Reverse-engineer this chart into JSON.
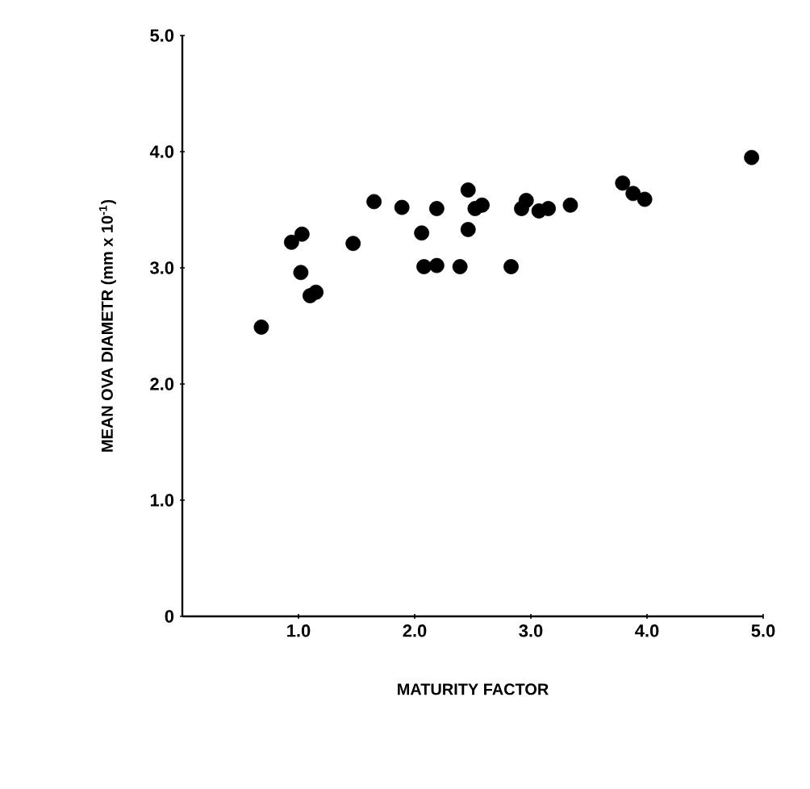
{
  "chart_data": {
    "type": "scatter",
    "xlabel": "MATURITY FACTOR",
    "ylabel": "MEAN OVA DIAMETR  (mm x 10$^{-1}$)",
    "x": [
      0.68,
      0.94,
      1.03,
      1.02,
      1.1,
      1.15,
      1.47,
      1.65,
      1.89,
      2.19,
      2.06,
      2.08,
      2.19,
      2.39,
      2.46,
      2.46,
      2.52,
      2.58,
      2.83,
      2.92,
      2.96,
      3.07,
      3.15,
      3.34,
      3.79,
      3.88,
      3.98,
      4.9
    ],
    "values": [
      2.49,
      3.22,
      3.29,
      2.96,
      2.76,
      2.79,
      3.21,
      3.57,
      3.52,
      3.51,
      3.3,
      3.01,
      3.02,
      3.01,
      3.67,
      3.33,
      3.51,
      3.54,
      3.01,
      3.51,
      3.58,
      3.49,
      3.51,
      3.54,
      3.73,
      3.64,
      3.59,
      3.95
    ],
    "color": "#000000",
    "marker": "circle",
    "xlim": [
      0,
      5
    ],
    "ylim": [
      0,
      5
    ],
    "xticks": [
      {
        "value": 1,
        "label": "1.0"
      },
      {
        "value": 2,
        "label": "2.0"
      },
      {
        "value": 3,
        "label": "3.0"
      },
      {
        "value": 4,
        "label": "4.0"
      },
      {
        "value": 5,
        "label": "5.0"
      }
    ],
    "yticks": [
      0,
      {
        "value": 1,
        "label": "1.0"
      },
      {
        "value": 2,
        "label": "2.0"
      },
      {
        "value": 3,
        "label": "3.0"
      },
      {
        "value": 4,
        "label": "4.0"
      },
      {
        "value": 5,
        "label": "5.0"
      }
    ],
    "grid": false
  }
}
